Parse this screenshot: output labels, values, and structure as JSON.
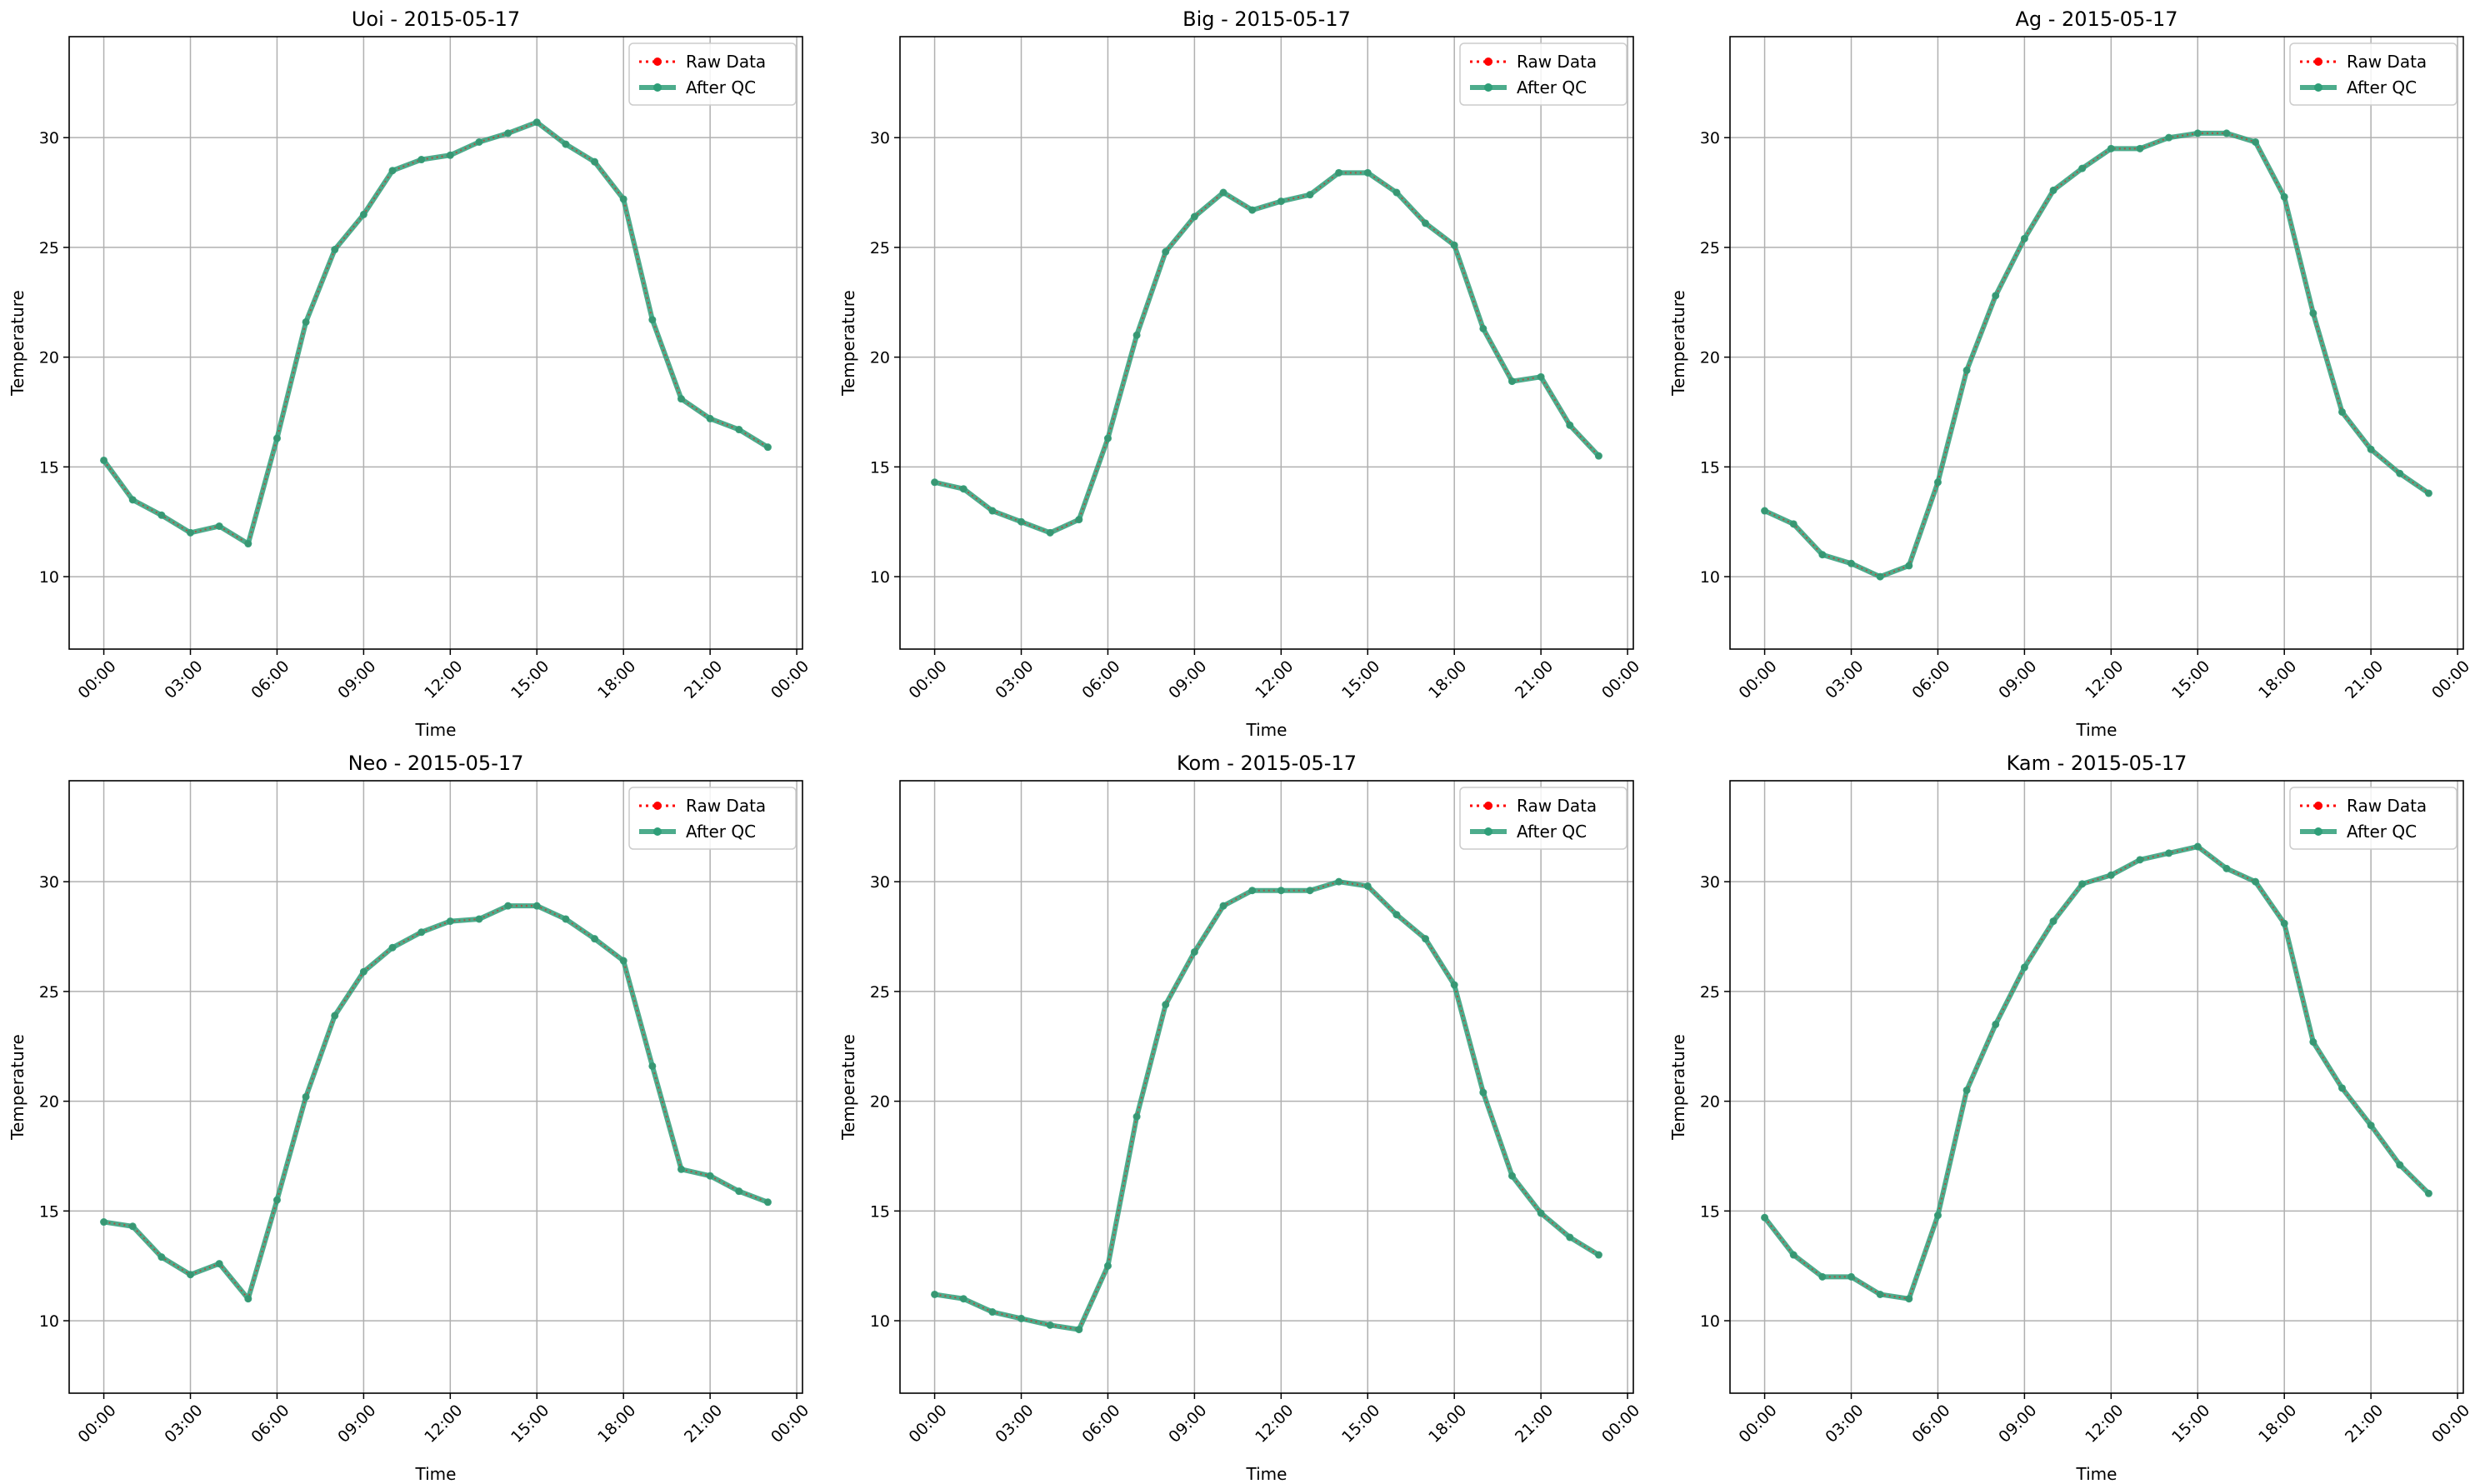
{
  "colors": {
    "raw": "#ff0000",
    "qc": "#2e9e78",
    "grid": "#b0b0b0",
    "frame": "#000000",
    "legend_border": "#cccccc"
  },
  "chart_data": [
    {
      "type": "line",
      "title": "Uoi - 2015-05-17",
      "xlabel": "Time",
      "ylabel": "Temperature",
      "x_ticks": [
        "00:00",
        "03:00",
        "06:00",
        "09:00",
        "12:00",
        "15:00",
        "18:00",
        "21:00",
        "00:00"
      ],
      "y_ticks": [
        10,
        15,
        20,
        25,
        30
      ],
      "xlim": [
        -1.2,
        24.2
      ],
      "ylim": [
        6.7,
        34.6
      ],
      "grid": true,
      "legend": "top-right",
      "legend_entries": [
        "Raw Data",
        "After QC"
      ],
      "x": [
        0,
        1,
        2,
        3,
        4,
        5,
        6,
        7,
        8,
        9,
        10,
        11,
        12,
        13,
        14,
        15,
        16,
        17,
        18,
        19,
        20,
        21,
        22,
        23
      ],
      "series": [
        {
          "name": "Raw Data",
          "values": [
            15.3,
            13.5,
            12.8,
            12.0,
            12.3,
            11.5,
            16.3,
            21.6,
            24.9,
            26.5,
            28.5,
            29.0,
            29.2,
            29.8,
            30.2,
            30.7,
            29.7,
            28.9,
            27.2,
            21.7,
            18.1,
            17.2,
            16.7,
            15.9
          ]
        },
        {
          "name": "After QC",
          "values": [
            15.3,
            13.5,
            12.8,
            12.0,
            12.3,
            11.5,
            16.3,
            21.6,
            24.9,
            26.5,
            28.5,
            29.0,
            29.2,
            29.8,
            30.2,
            30.7,
            29.7,
            28.9,
            27.2,
            21.7,
            18.1,
            17.2,
            16.7,
            15.9
          ]
        }
      ]
    },
    {
      "type": "line",
      "title": "Big - 2015-05-17",
      "xlabel": "Time",
      "ylabel": "Temperature",
      "x_ticks": [
        "00:00",
        "03:00",
        "06:00",
        "09:00",
        "12:00",
        "15:00",
        "18:00",
        "21:00",
        "00:00"
      ],
      "y_ticks": [
        10,
        15,
        20,
        25,
        30
      ],
      "xlim": [
        -1.2,
        24.2
      ],
      "ylim": [
        6.7,
        34.6
      ],
      "grid": true,
      "legend": "top-right",
      "legend_entries": [
        "Raw Data",
        "After QC"
      ],
      "x": [
        0,
        1,
        2,
        3,
        4,
        5,
        6,
        7,
        8,
        9,
        10,
        11,
        12,
        13,
        14,
        15,
        16,
        17,
        18,
        19,
        20,
        21,
        22,
        23
      ],
      "series": [
        {
          "name": "Raw Data",
          "values": [
            14.3,
            14.0,
            13.0,
            12.5,
            12.0,
            12.6,
            16.3,
            21.0,
            24.8,
            26.4,
            27.5,
            26.7,
            27.1,
            27.4,
            28.4,
            28.4,
            27.5,
            26.1,
            25.1,
            21.3,
            18.9,
            19.1,
            16.9,
            15.5
          ]
        },
        {
          "name": "After QC",
          "values": [
            14.3,
            14.0,
            13.0,
            12.5,
            12.0,
            12.6,
            16.3,
            21.0,
            24.8,
            26.4,
            27.5,
            26.7,
            27.1,
            27.4,
            28.4,
            28.4,
            27.5,
            26.1,
            25.1,
            21.3,
            18.9,
            19.1,
            16.9,
            15.5
          ]
        }
      ]
    },
    {
      "type": "line",
      "title": "Ag - 2015-05-17",
      "xlabel": "Time",
      "ylabel": "Temperature",
      "x_ticks": [
        "00:00",
        "03:00",
        "06:00",
        "09:00",
        "12:00",
        "15:00",
        "18:00",
        "21:00",
        "00:00"
      ],
      "y_ticks": [
        10,
        15,
        20,
        25,
        30
      ],
      "xlim": [
        -1.2,
        24.2
      ],
      "ylim": [
        6.7,
        34.6
      ],
      "grid": true,
      "legend": "top-right",
      "legend_entries": [
        "Raw Data",
        "After QC"
      ],
      "x": [
        0,
        1,
        2,
        3,
        4,
        5,
        6,
        7,
        8,
        9,
        10,
        11,
        12,
        13,
        14,
        15,
        16,
        17,
        18,
        19,
        20,
        21,
        22,
        23
      ],
      "series": [
        {
          "name": "Raw Data",
          "values": [
            13.0,
            12.4,
            11.0,
            10.6,
            10.0,
            10.5,
            14.3,
            19.4,
            22.8,
            25.4,
            27.6,
            28.6,
            29.5,
            29.5,
            30.0,
            30.2,
            30.2,
            29.8,
            27.3,
            22.0,
            17.5,
            15.8,
            14.7,
            13.8
          ]
        },
        {
          "name": "After QC",
          "values": [
            13.0,
            12.4,
            11.0,
            10.6,
            10.0,
            10.5,
            14.3,
            19.4,
            22.8,
            25.4,
            27.6,
            28.6,
            29.5,
            29.5,
            30.0,
            30.2,
            30.2,
            29.8,
            27.3,
            22.0,
            17.5,
            15.8,
            14.7,
            13.8
          ]
        }
      ]
    },
    {
      "type": "line",
      "title": "Neo - 2015-05-17",
      "xlabel": "Time",
      "ylabel": "Temperature",
      "x_ticks": [
        "00:00",
        "03:00",
        "06:00",
        "09:00",
        "12:00",
        "15:00",
        "18:00",
        "21:00",
        "00:00"
      ],
      "y_ticks": [
        10,
        15,
        20,
        25,
        30
      ],
      "xlim": [
        -1.2,
        24.2
      ],
      "ylim": [
        6.7,
        34.6
      ],
      "grid": true,
      "legend": "top-right",
      "legend_entries": [
        "Raw Data",
        "After QC"
      ],
      "x": [
        0,
        1,
        2,
        3,
        4,
        5,
        6,
        7,
        8,
        9,
        10,
        11,
        12,
        13,
        14,
        15,
        16,
        17,
        18,
        19,
        20,
        21,
        22,
        23
      ],
      "series": [
        {
          "name": "Raw Data",
          "values": [
            14.5,
            14.3,
            12.9,
            12.1,
            12.6,
            11.0,
            15.5,
            20.2,
            23.9,
            25.9,
            27.0,
            27.7,
            28.2,
            28.3,
            28.9,
            28.9,
            28.3,
            27.4,
            26.4,
            21.6,
            16.9,
            16.6,
            15.9,
            15.4
          ]
        },
        {
          "name": "After QC",
          "values": [
            14.5,
            14.3,
            12.9,
            12.1,
            12.6,
            11.0,
            15.5,
            20.2,
            23.9,
            25.9,
            27.0,
            27.7,
            28.2,
            28.3,
            28.9,
            28.9,
            28.3,
            27.4,
            26.4,
            21.6,
            16.9,
            16.6,
            15.9,
            15.4
          ]
        }
      ]
    },
    {
      "type": "line",
      "title": "Kom - 2015-05-17",
      "xlabel": "Time",
      "ylabel": "Temperature",
      "x_ticks": [
        "00:00",
        "03:00",
        "06:00",
        "09:00",
        "12:00",
        "15:00",
        "18:00",
        "21:00",
        "00:00"
      ],
      "y_ticks": [
        10,
        15,
        20,
        25,
        30
      ],
      "xlim": [
        -1.2,
        24.2
      ],
      "ylim": [
        6.7,
        34.6
      ],
      "grid": true,
      "legend": "top-right",
      "legend_entries": [
        "Raw Data",
        "After QC"
      ],
      "x": [
        0,
        1,
        2,
        3,
        4,
        5,
        6,
        7,
        8,
        9,
        10,
        11,
        12,
        13,
        14,
        15,
        16,
        17,
        18,
        19,
        20,
        21,
        22,
        23
      ],
      "series": [
        {
          "name": "Raw Data",
          "values": [
            11.2,
            11.0,
            10.4,
            10.1,
            9.8,
            9.6,
            12.5,
            19.3,
            24.4,
            26.8,
            28.9,
            29.6,
            29.6,
            29.6,
            30.0,
            29.8,
            28.5,
            27.4,
            25.3,
            20.4,
            16.6,
            14.9,
            13.8,
            13.0
          ]
        },
        {
          "name": "After QC",
          "values": [
            11.2,
            11.0,
            10.4,
            10.1,
            9.8,
            9.6,
            12.5,
            19.3,
            24.4,
            26.8,
            28.9,
            29.6,
            29.6,
            29.6,
            30.0,
            29.8,
            28.5,
            27.4,
            25.3,
            20.4,
            16.6,
            14.9,
            13.8,
            13.0
          ]
        }
      ]
    },
    {
      "type": "line",
      "title": "Kam - 2015-05-17",
      "xlabel": "Time",
      "ylabel": "Temperature",
      "x_ticks": [
        "00:00",
        "03:00",
        "06:00",
        "09:00",
        "12:00",
        "15:00",
        "18:00",
        "21:00",
        "00:00"
      ],
      "y_ticks": [
        10,
        15,
        20,
        25,
        30
      ],
      "xlim": [
        -1.2,
        24.2
      ],
      "ylim": [
        6.7,
        34.6
      ],
      "grid": true,
      "legend": "top-right",
      "legend_entries": [
        "Raw Data",
        "After QC"
      ],
      "x": [
        0,
        1,
        2,
        3,
        4,
        5,
        6,
        7,
        8,
        9,
        10,
        11,
        12,
        13,
        14,
        15,
        16,
        17,
        18,
        19,
        20,
        21,
        22,
        23
      ],
      "series": [
        {
          "name": "Raw Data",
          "values": [
            14.7,
            13.0,
            12.0,
            12.0,
            11.2,
            11.0,
            14.8,
            20.5,
            23.5,
            26.1,
            28.2,
            29.9,
            30.3,
            31.0,
            31.3,
            31.6,
            30.6,
            30.0,
            28.1,
            22.7,
            20.6,
            18.9,
            17.1,
            15.8
          ]
        },
        {
          "name": "After QC",
          "values": [
            14.7,
            13.0,
            12.0,
            12.0,
            11.2,
            11.0,
            14.8,
            20.5,
            23.5,
            26.1,
            28.2,
            29.9,
            30.3,
            31.0,
            31.3,
            31.6,
            30.6,
            30.0,
            28.1,
            22.7,
            20.6,
            18.9,
            17.1,
            15.8
          ]
        }
      ]
    }
  ]
}
